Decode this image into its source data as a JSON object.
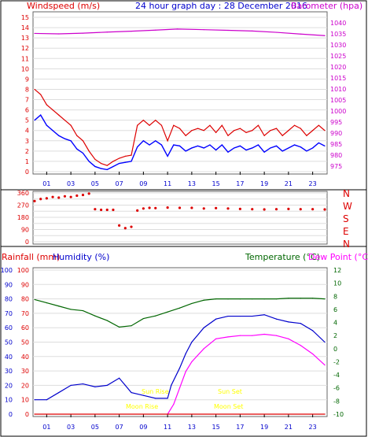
{
  "panel1": {
    "left_title": "Windspeed (m/s)",
    "center_title": "24 hour graph day : 28 December 2016",
    "right_title": "Barometer (hpa)"
  },
  "panel2": {
    "compass": [
      "N",
      "W",
      "S",
      "E",
      "N"
    ]
  },
  "panel3": {
    "left_title_1": "Rainfall (mm)",
    "left_title_2": "Humidity (%)",
    "right_title_1": "Temperature (°C)",
    "right_title_2": "Dew Point (°C)",
    "sun_rise": "Sun Rise",
    "sun_set": "Sun Set",
    "moon_rise": "Moon Rise",
    "moon_set": "Moon Set"
  },
  "colors": {
    "wind_avg": "#0000ff",
    "wind_gust": "#dd0000",
    "barometer": "#cc00cc",
    "direction": "#dd0000",
    "humidity": "#0000cc",
    "temperature": "#006600",
    "dewpoint": "#ff00ff",
    "rainfall": "#dd0000",
    "sun_moon": "#ffff00"
  },
  "chart_data": [
    {
      "type": "line",
      "x_ticks": [
        "01",
        "03",
        "05",
        "07",
        "09",
        "11",
        "13",
        "15",
        "17",
        "19",
        "21",
        "23"
      ],
      "y_left_ticks": [
        0,
        1,
        2,
        3,
        4,
        5,
        6,
        7,
        8,
        9,
        10,
        11,
        12,
        13,
        14,
        15
      ],
      "y_left_range": [
        0,
        15
      ],
      "y_right_ticks": [
        975,
        980,
        985,
        990,
        995,
        1000,
        1005,
        1010,
        1015,
        1020,
        1025,
        1030,
        1035,
        1040
      ],
      "y_right_range": [
        972.5,
        1042.5
      ],
      "series": [
        {
          "axis": "right",
          "x": [
            0,
            2,
            4,
            6,
            8,
            10,
            11.8,
            14,
            16,
            18,
            20,
            22,
            24
          ],
          "values": [
            1035.2,
            1035.0,
            1035.3,
            1035.8,
            1036.2,
            1036.7,
            1037.2,
            1036.9,
            1036.6,
            1036.3,
            1035.7,
            1034.9,
            1034.2
          ]
        },
        {
          "axis": "left",
          "x": [
            0,
            0.5,
            1,
            1.5,
            2,
            2.5,
            3,
            3.5,
            4,
            4.5,
            5,
            5.5,
            6,
            6.5,
            7,
            7.5,
            8,
            8.5,
            9,
            9.5,
            10,
            10.5,
            11,
            11.5,
            12,
            12.5,
            13,
            13.5,
            14,
            14.5,
            15,
            15.5,
            16,
            16.5,
            17,
            17.5,
            18,
            18.5,
            19,
            19.5,
            20,
            20.5,
            21,
            21.5,
            22,
            22.5,
            23,
            23.5,
            24
          ],
          "values": [
            8,
            7.5,
            6.5,
            6,
            5.5,
            5,
            4.5,
            3.5,
            3,
            2,
            1.2,
            0.8,
            0.6,
            1,
            1.3,
            1.5,
            1.6,
            4.5,
            5,
            4.5,
            5,
            4.5,
            3,
            4.5,
            4.2,
            3.5,
            4,
            4.2,
            4,
            4.5,
            3.8,
            4.5,
            3.5,
            4,
            4.2,
            3.8,
            4,
            4.5,
            3.5,
            4,
            4.2,
            3.5,
            4,
            4.5,
            4.2,
            3.5,
            4,
            4.5,
            4
          ]
        },
        {
          "axis": "left",
          "x": [
            0,
            0.5,
            1,
            1.5,
            2,
            2.5,
            3,
            3.5,
            4,
            4.5,
            5,
            5.5,
            6,
            6.5,
            7,
            7.5,
            8,
            8.5,
            9,
            9.5,
            10,
            10.5,
            11,
            11.5,
            12,
            12.5,
            13,
            13.5,
            14,
            14.5,
            15,
            15.5,
            16,
            16.5,
            17,
            17.5,
            18,
            18.5,
            19,
            19.5,
            20,
            20.5,
            21,
            21.5,
            22,
            22.5,
            23,
            23.5,
            24
          ],
          "values": [
            5,
            5.5,
            4.5,
            4,
            3.5,
            3.2,
            3,
            2.2,
            1.8,
            1,
            0.5,
            0.3,
            0.2,
            0.5,
            0.8,
            0.9,
            1,
            2.4,
            3,
            2.6,
            3,
            2.6,
            1.5,
            2.6,
            2.5,
            2,
            2.3,
            2.5,
            2.3,
            2.6,
            2.1,
            2.6,
            1.9,
            2.3,
            2.5,
            2.1,
            2.3,
            2.6,
            1.9,
            2.3,
            2.5,
            2,
            2.3,
            2.6,
            2.4,
            2,
            2.3,
            2.8,
            2.5
          ]
        }
      ]
    },
    {
      "type": "scatter",
      "x_ticks": [],
      "y_left_ticks": [
        0,
        45,
        90,
        135,
        180,
        225,
        270,
        315,
        360
      ],
      "y_left_range": [
        0,
        360
      ],
      "series": [
        {
          "x": [
            0,
            0.5,
            1,
            1.5,
            2,
            2.5,
            3,
            3.5,
            4,
            4.5,
            5,
            5.5,
            6,
            6.5,
            7,
            7.5,
            8,
            8.5,
            9,
            9.5,
            10,
            11,
            12,
            13,
            14,
            15,
            16,
            17,
            18,
            19,
            20,
            21,
            22,
            23,
            24
          ],
          "values": [
            300,
            315,
            320,
            330,
            325,
            335,
            330,
            340,
            345,
            355,
            240,
            235,
            235,
            235,
            120,
            100,
            110,
            230,
            245,
            250,
            248,
            252,
            250,
            250,
            245,
            248,
            245,
            242,
            240,
            238,
            240,
            242,
            240,
            240,
            238
          ]
        }
      ]
    },
    {
      "type": "line",
      "x_ticks": [
        "01",
        "03",
        "05",
        "07",
        "09",
        "11",
        "13",
        "15",
        "17",
        "19",
        "21",
        "23"
      ],
      "y_left_ticks": [
        0,
        10,
        20,
        30,
        40,
        50,
        60,
        70,
        80,
        90,
        100
      ],
      "y_left_range": [
        0,
        100
      ],
      "y_right_ticks": [
        -10,
        -8,
        -6,
        -4,
        -2,
        0,
        2,
        4,
        6,
        8,
        10,
        12
      ],
      "y_right_range": [
        -10,
        12
      ],
      "series": [
        {
          "axis": "right",
          "x": [
            0,
            1,
            2,
            3,
            4,
            5,
            6,
            7,
            8,
            9,
            10,
            11,
            12,
            13,
            14,
            15,
            16,
            17,
            18,
            19,
            20,
            21,
            22,
            23,
            24
          ],
          "values": [
            7.5,
            7,
            6.5,
            6,
            5.8,
            5,
            4.3,
            3.3,
            3.5,
            4.6,
            5,
            5.6,
            6.2,
            6.9,
            7.4,
            7.6,
            7.6,
            7.6,
            7.6,
            7.6,
            7.6,
            7.7,
            7.7,
            7.7,
            7.6
          ]
        },
        {
          "axis": "left",
          "x": [
            0,
            1,
            2,
            3,
            4,
            5,
            6,
            7,
            7.5,
            8,
            9,
            10,
            11,
            11.3,
            12,
            12.5,
            13,
            14,
            15,
            16,
            17,
            18,
            19,
            20,
            21,
            22,
            23,
            24
          ],
          "values": [
            10,
            10,
            15,
            20,
            21,
            19,
            20,
            25,
            20,
            15,
            13,
            11,
            11,
            20,
            32,
            42,
            50,
            60,
            66,
            68,
            68,
            68,
            69,
            66,
            64,
            63,
            58,
            50
          ]
        },
        {
          "axis": "right",
          "x": [
            11,
            11.5,
            12,
            12.5,
            13,
            14,
            15,
            16,
            17,
            18,
            19,
            20,
            21,
            22,
            23,
            24
          ],
          "values": [
            -10,
            -8.5,
            -6,
            -3.5,
            -2,
            0,
            1.5,
            1.8,
            2,
            2,
            2.2,
            2,
            1.5,
            0.5,
            -0.8,
            -2.5
          ]
        },
        {
          "axis": "left",
          "x": [
            0,
            24
          ],
          "values": [
            0,
            0
          ]
        }
      ]
    }
  ]
}
